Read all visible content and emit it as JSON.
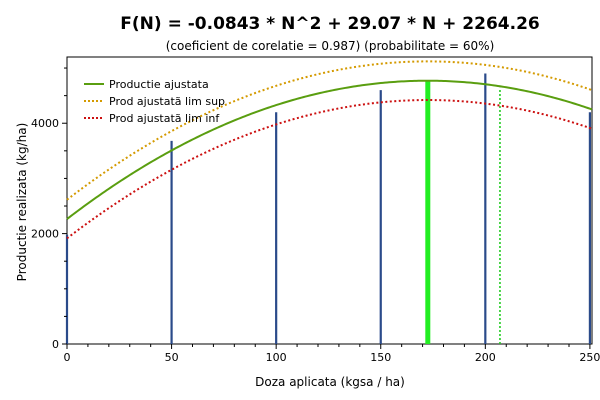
{
  "chart_data": {
    "type": "line",
    "title": "F(N) = -0.0843 * N^2  +  29.07 * N  +  2264.26",
    "subtitle": "(coeficient de corelatie = 0.987) (probabilitate = 60%)",
    "xlabel": "Doza aplicata (kgsa / ha)",
    "ylabel": "Productie realizata (kg/ha)",
    "xlim": [
      0,
      251
    ],
    "ylim": [
      0,
      5200
    ],
    "x_ticks": [
      0,
      50,
      100,
      150,
      200,
      250
    ],
    "y_ticks": [
      0,
      2000,
      4000
    ],
    "grid": false,
    "legend_position": "top-left",
    "coefficients": {
      "a": -0.0843,
      "b": 29.07,
      "c": 2264.26
    },
    "series": [
      {
        "name": "Productie ajustata",
        "style": "solid",
        "color": "#5a9e10",
        "offset": 0
      },
      {
        "name": "Prod ajustatã lim sup",
        "style": "dotted",
        "color": "#d49a00",
        "offset": 350
      },
      {
        "name": "Prod ajustatã lim inf",
        "style": "dotted",
        "color": "#cc1010",
        "offset": -350
      }
    ],
    "observed": {
      "color": "#2a4a8a",
      "points": [
        {
          "x": 0,
          "y": 1980
        },
        {
          "x": 50,
          "y": 3680
        },
        {
          "x": 100,
          "y": 4200
        },
        {
          "x": 150,
          "y": 4600
        },
        {
          "x": 200,
          "y": 4900
        },
        {
          "x": 250,
          "y": 4200
        }
      ]
    },
    "optimum_lines": [
      {
        "x": 172.5,
        "y": 4770,
        "style": "solid-thick",
        "color": "#22ee22"
      },
      {
        "x": 207,
        "y": 4640,
        "style": "dotted",
        "color": "#22cc22"
      }
    ]
  }
}
